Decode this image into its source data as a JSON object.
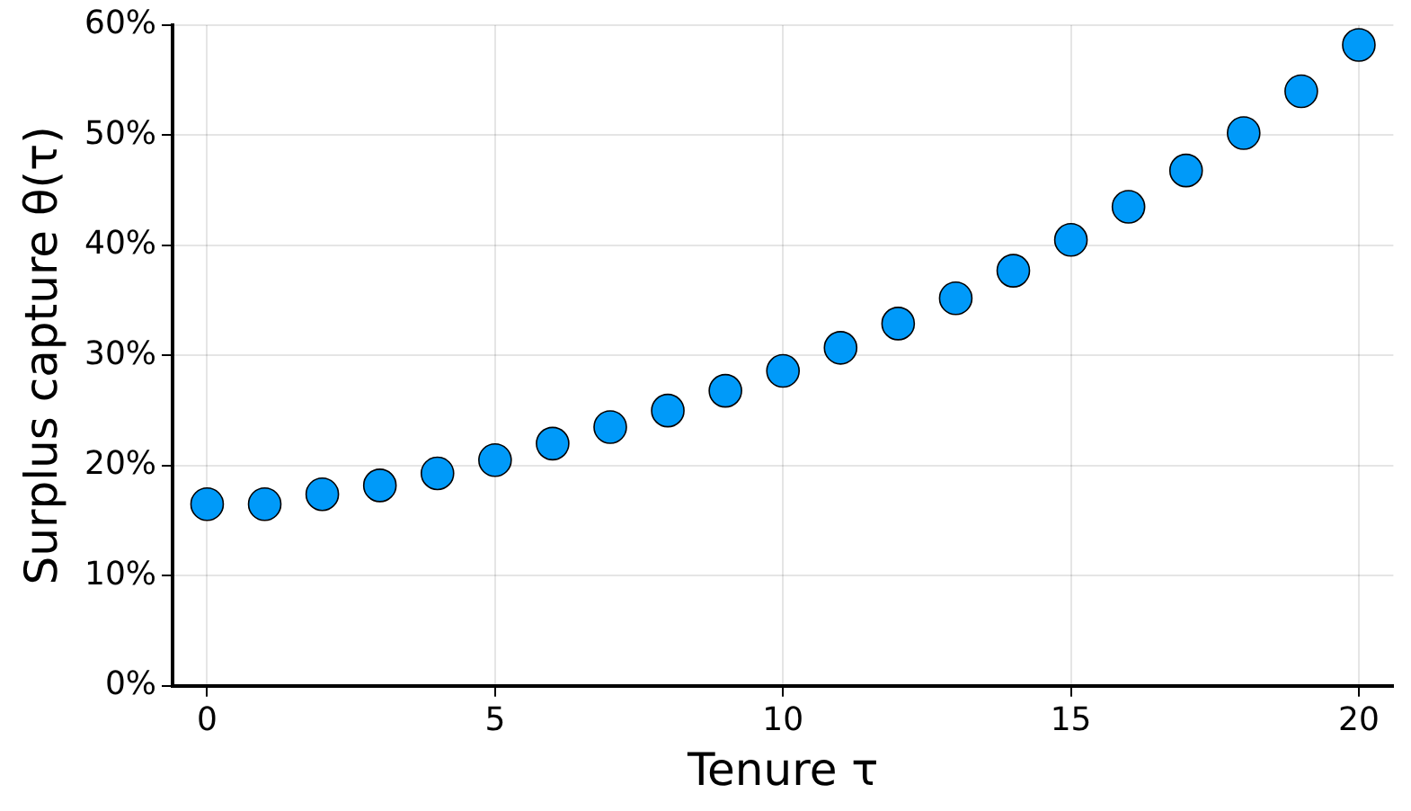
{
  "chart_data": {
    "type": "scatter",
    "xlabel": "Tenure τ",
    "ylabel": "Surplus capture θ(τ)",
    "x": [
      0,
      1,
      2,
      3,
      4,
      5,
      6,
      7,
      8,
      9,
      10,
      11,
      12,
      13,
      14,
      15,
      16,
      17,
      18,
      19,
      20
    ],
    "series": [
      {
        "color": "#009af9",
        "values": [
          16.5,
          16.5,
          17.4,
          18.2,
          19.3,
          20.5,
          22.0,
          23.5,
          25.0,
          26.8,
          28.6,
          30.7,
          32.9,
          35.2,
          37.7,
          40.5,
          43.5,
          46.8,
          50.2,
          54.0,
          58.2
        ]
      }
    ],
    "xlim": [
      -0.6,
      20.6
    ],
    "xticks": [
      0,
      5,
      10,
      15,
      20
    ],
    "ylim": [
      0,
      60
    ],
    "yticks": [
      {
        "value": 0,
        "label": "0%"
      },
      {
        "value": 10,
        "label": "10%"
      },
      {
        "value": 20,
        "label": "20%"
      },
      {
        "value": 30,
        "label": "30%"
      },
      {
        "value": 40,
        "label": "40%"
      },
      {
        "value": 50,
        "label": "50%"
      },
      {
        "value": 60,
        "label": "60%"
      }
    ],
    "grid": true,
    "legend": false,
    "marker": "circle"
  }
}
